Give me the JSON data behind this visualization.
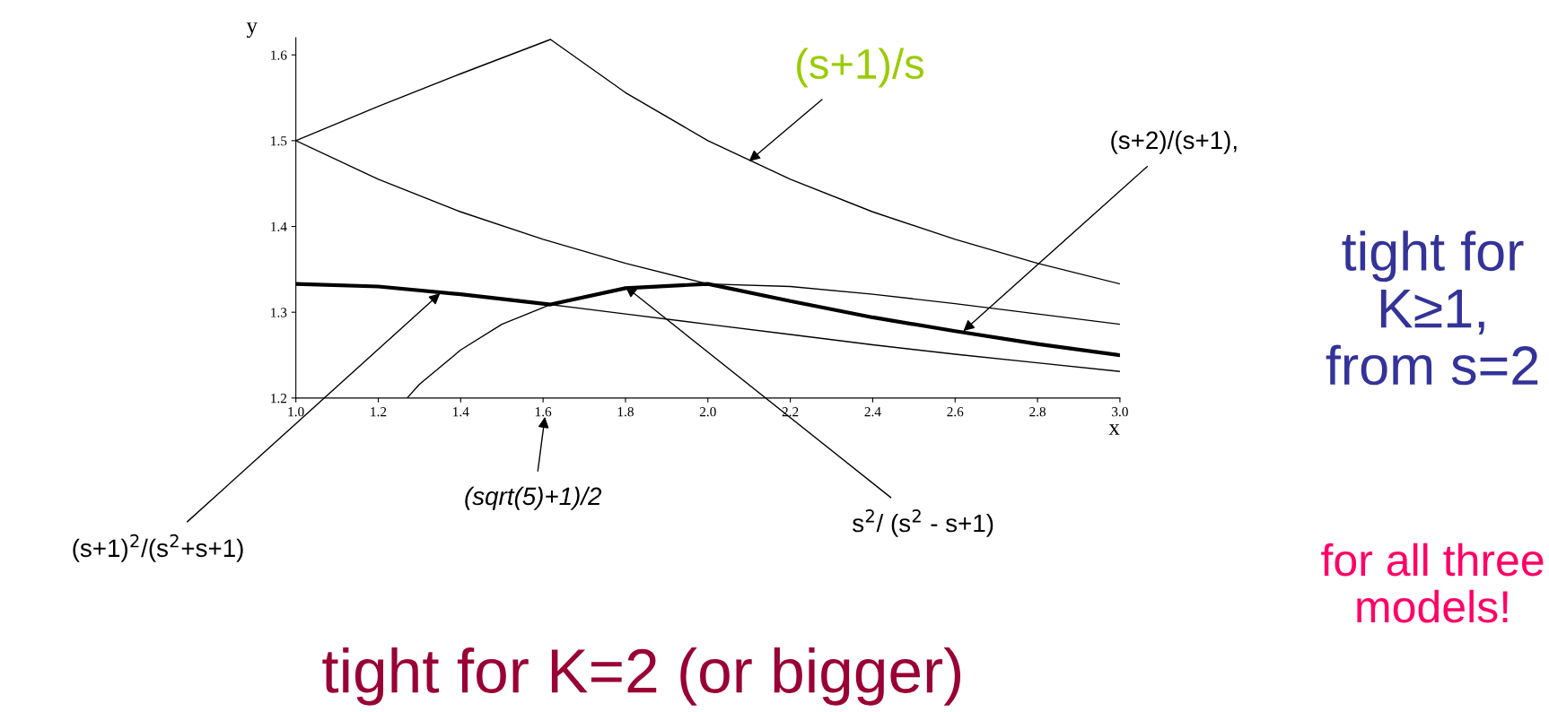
{
  "chart_data": {
    "type": "line",
    "xlabel": "x",
    "ylabel": "y",
    "xlim": [
      1.0,
      3.0
    ],
    "ylim": [
      1.2,
      1.62
    ],
    "xticks": [
      {
        "value": 1.0,
        "label": "1.0"
      },
      1.2,
      1.4,
      1.6,
      1.8,
      {
        "value": 2.0,
        "label": "2.0"
      },
      2.2,
      2.4,
      2.6,
      2.8,
      {
        "value": 3.0,
        "label": "3.0"
      }
    ],
    "yticks": [
      1.2,
      1.3,
      1.4,
      1.5,
      1.6
    ],
    "grid": false,
    "legend": false,
    "marker": "none",
    "line_style": "solid",
    "series": [
      {
        "color": "#000000",
        "x": [
          1.0,
          1.2,
          1.4,
          1.618,
          1.8,
          2.0,
          2.2,
          2.4,
          2.6,
          2.8,
          3.0
        ],
        "values": [
          1.5,
          1.54,
          1.578,
          1.618,
          1.556,
          1.5,
          1.455,
          1.417,
          1.385,
          1.357,
          1.333
        ]
      },
      {
        "color": "#000000",
        "x": [
          1.0,
          1.2,
          1.4,
          1.6,
          1.8,
          2.0,
          2.2,
          2.4,
          2.6,
          2.8,
          3.0
        ],
        "values": [
          1.5,
          1.455,
          1.417,
          1.385,
          1.357,
          1.333,
          1.33,
          1.321,
          1.31,
          1.298,
          1.286
        ]
      },
      {
        "color": "#000000",
        "x": [
          1.0,
          1.2,
          1.4,
          1.618,
          1.8,
          2.0,
          2.2,
          2.4,
          2.6,
          2.8,
          3.0
        ],
        "values": [
          1.333,
          1.33,
          1.321,
          1.309,
          1.328,
          1.333,
          1.313,
          1.294,
          1.278,
          1.263,
          1.25
        ]
      },
      {
        "color": "#000000",
        "x": [
          1.618,
          1.8,
          2.0,
          2.2,
          2.4,
          2.6,
          2.8,
          3.0
        ],
        "values": [
          1.309,
          1.298,
          1.286,
          1.274,
          1.262,
          1.251,
          1.241,
          1.231
        ]
      },
      {
        "color": "#000000",
        "x": [
          1.27,
          1.3,
          1.4,
          1.5,
          1.618
        ],
        "values": [
          1.2,
          1.216,
          1.256,
          1.286,
          1.309
        ]
      }
    ],
    "annotations": [
      {
        "text": "(s+1)/s",
        "x": 2.1,
        "y": 1.476
      },
      {
        "text": "(s+2)/(s+1),",
        "x": 2.62,
        "y": 1.278
      },
      {
        "text": "(s+1)$^{2}$/(s$^{2}$+s+1)",
        "x": 1.35,
        "y": 1.322
      },
      "(sqrt(5)+1)/2",
      {
        "text": "s$^{2}$/ (s$^{2}$ - s+1)",
        "x": 1.8,
        "y": 1.33
      },
      "tight for\nK≥1,\nfrom s=2",
      "for all three\nmodels!",
      "tight for K=2 (or bigger)"
    ]
  }
}
